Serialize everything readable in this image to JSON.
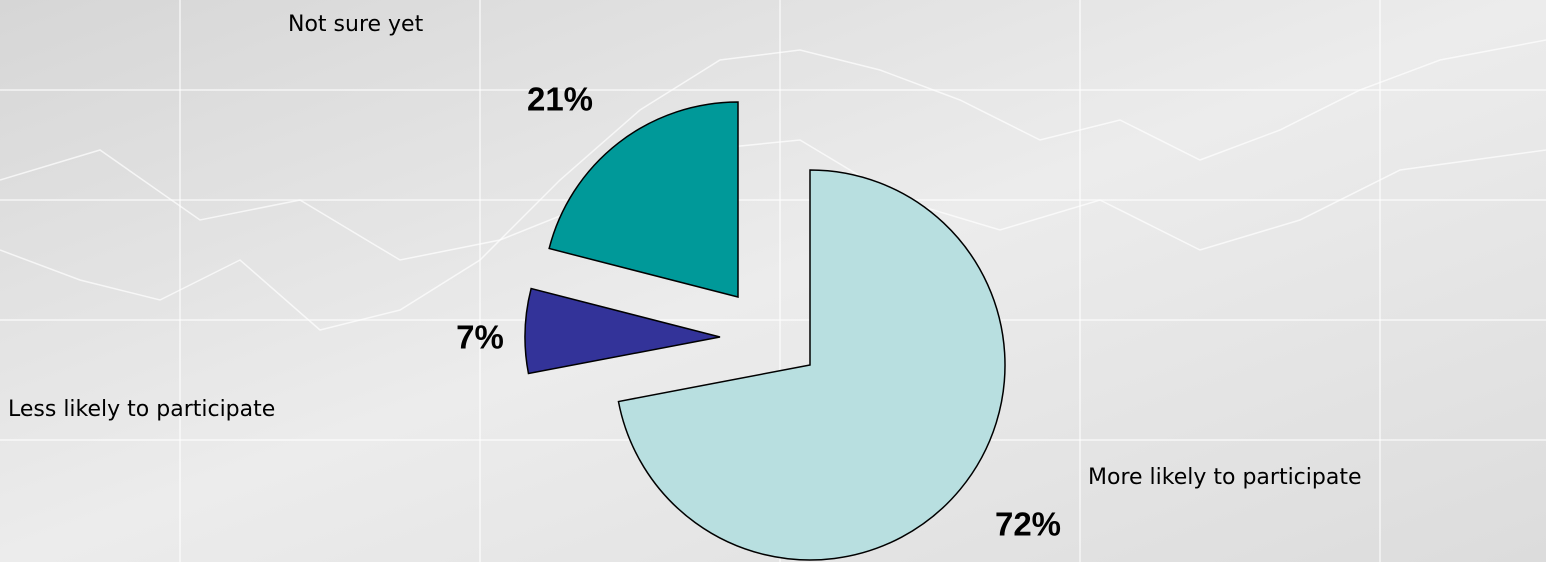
{
  "chart_data": {
    "type": "pie",
    "categories": [
      "More likely to participate",
      "Less likely to participate",
      "Not sure yet"
    ],
    "values": [
      72,
      7,
      21
    ],
    "value_labels": [
      "72%",
      "7%",
      "21%"
    ],
    "colors": [
      "#b8dfe0",
      "#333399",
      "#009999"
    ]
  }
}
